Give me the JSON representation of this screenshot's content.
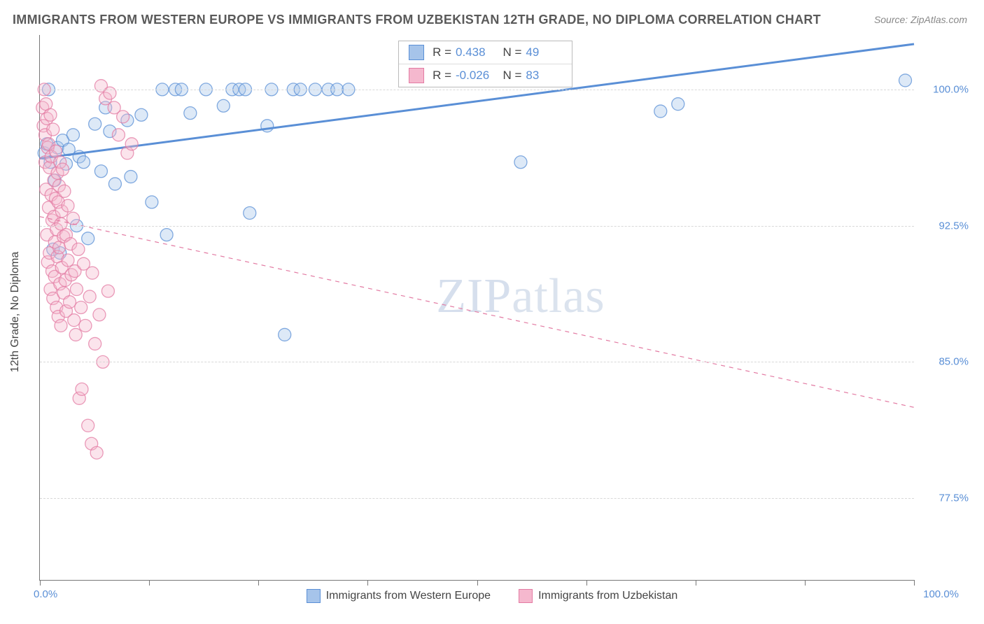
{
  "title": "IMMIGRANTS FROM WESTERN EUROPE VS IMMIGRANTS FROM UZBEKISTAN 12TH GRADE, NO DIPLOMA CORRELATION CHART",
  "source": "Source: ZipAtlas.com",
  "y_axis_title": "12th Grade, No Diploma",
  "x_min_label": "0.0%",
  "x_max_label": "100.0%",
  "watermark_bold": "ZIP",
  "watermark_thin": "atlas",
  "chart": {
    "type": "scatter",
    "background_color": "#ffffff",
    "grid_color": "#d8d8d8",
    "axis_color": "#777777",
    "xlim": [
      0,
      100
    ],
    "ylim": [
      73,
      103
    ],
    "y_ticks": [
      77.5,
      85.0,
      92.5,
      100.0
    ],
    "y_tick_labels": [
      "77.5%",
      "85.0%",
      "92.5%",
      "100.0%"
    ],
    "x_ticks": [
      0,
      12.5,
      25,
      37.5,
      50,
      62.5,
      75,
      87.5,
      100
    ],
    "marker_radius": 9,
    "marker_opacity": 0.38,
    "marker_stroke_opacity": 0.75,
    "line_width_solid": 3,
    "line_width_dashed": 1.2,
    "series": [
      {
        "name": "Immigrants from Western Europe",
        "color": "#5a8fd6",
        "fill": "#a6c4ea",
        "reg_line": {
          "x1": 0,
          "y1": 96.2,
          "x2": 100,
          "y2": 102.5,
          "dashed": false
        },
        "stats": {
          "R": "0.438",
          "N": "49"
        },
        "points": [
          [
            0.5,
            96.5
          ],
          [
            0.8,
            97.0
          ],
          [
            1.0,
            100.0
          ],
          [
            1.2,
            96.0
          ],
          [
            1.5,
            91.2
          ],
          [
            1.7,
            95.0
          ],
          [
            2.0,
            96.8
          ],
          [
            2.3,
            91.0
          ],
          [
            2.6,
            97.2
          ],
          [
            3.0,
            95.9
          ],
          [
            3.3,
            96.7
          ],
          [
            3.8,
            97.5
          ],
          [
            4.2,
            92.5
          ],
          [
            4.5,
            96.3
          ],
          [
            5.0,
            96.0
          ],
          [
            5.5,
            91.8
          ],
          [
            6.3,
            98.1
          ],
          [
            7.0,
            95.5
          ],
          [
            7.5,
            99.0
          ],
          [
            8.0,
            97.7
          ],
          [
            8.6,
            94.8
          ],
          [
            10.0,
            98.3
          ],
          [
            10.4,
            95.2
          ],
          [
            11.6,
            98.6
          ],
          [
            12.8,
            93.8
          ],
          [
            14.0,
            100.0
          ],
          [
            14.5,
            92.0
          ],
          [
            15.5,
            100.0
          ],
          [
            16.2,
            100.0
          ],
          [
            17.2,
            98.7
          ],
          [
            19.0,
            100.0
          ],
          [
            21.0,
            99.1
          ],
          [
            22.0,
            100.0
          ],
          [
            22.8,
            100.0
          ],
          [
            23.5,
            100.0
          ],
          [
            24.0,
            93.2
          ],
          [
            26.0,
            98.0
          ],
          [
            26.5,
            100.0
          ],
          [
            28.0,
            86.5
          ],
          [
            29.0,
            100.0
          ],
          [
            29.8,
            100.0
          ],
          [
            31.5,
            100.0
          ],
          [
            33.0,
            100.0
          ],
          [
            34.0,
            100.0
          ],
          [
            35.3,
            100.0
          ],
          [
            55.0,
            96.0
          ],
          [
            71.0,
            98.8
          ],
          [
            73.0,
            99.2
          ],
          [
            99.0,
            100.5
          ]
        ]
      },
      {
        "name": "Immigrants from Uzbekistan",
        "color": "#e37ba3",
        "fill": "#f5b8ce",
        "reg_line": {
          "x1": 0,
          "y1": 93.0,
          "x2": 100,
          "y2": 82.5,
          "dashed": true
        },
        "stats": {
          "R": "-0.026",
          "N": "83"
        },
        "points": [
          [
            0.3,
            99.0
          ],
          [
            0.4,
            98.0
          ],
          [
            0.5,
            100.0
          ],
          [
            0.6,
            97.5
          ],
          [
            0.6,
            96.0
          ],
          [
            0.7,
            99.2
          ],
          [
            0.7,
            94.5
          ],
          [
            0.8,
            98.4
          ],
          [
            0.8,
            92.0
          ],
          [
            0.9,
            96.8
          ],
          [
            0.9,
            90.5
          ],
          [
            1.0,
            97.0
          ],
          [
            1.0,
            93.5
          ],
          [
            1.1,
            91.0
          ],
          [
            1.1,
            95.7
          ],
          [
            1.2,
            98.6
          ],
          [
            1.2,
            89.0
          ],
          [
            1.3,
            94.2
          ],
          [
            1.3,
            96.3
          ],
          [
            1.4,
            92.8
          ],
          [
            1.4,
            90.0
          ],
          [
            1.5,
            97.8
          ],
          [
            1.5,
            88.5
          ],
          [
            1.6,
            93.0
          ],
          [
            1.6,
            95.0
          ],
          [
            1.7,
            91.6
          ],
          [
            1.7,
            89.7
          ],
          [
            1.8,
            94.0
          ],
          [
            1.8,
            96.6
          ],
          [
            1.9,
            88.0
          ],
          [
            1.9,
            92.3
          ],
          [
            2.0,
            95.4
          ],
          [
            2.0,
            90.8
          ],
          [
            2.1,
            93.8
          ],
          [
            2.1,
            87.5
          ],
          [
            2.2,
            91.3
          ],
          [
            2.2,
            94.7
          ],
          [
            2.3,
            89.3
          ],
          [
            2.3,
            96.0
          ],
          [
            2.4,
            92.6
          ],
          [
            2.4,
            87.0
          ],
          [
            2.5,
            90.2
          ],
          [
            2.5,
            93.3
          ],
          [
            2.6,
            95.6
          ],
          [
            2.7,
            88.8
          ],
          [
            2.7,
            91.9
          ],
          [
            2.8,
            94.4
          ],
          [
            2.9,
            89.5
          ],
          [
            3.0,
            92.0
          ],
          [
            3.0,
            87.8
          ],
          [
            3.2,
            90.6
          ],
          [
            3.2,
            93.6
          ],
          [
            3.4,
            88.3
          ],
          [
            3.5,
            91.5
          ],
          [
            3.6,
            89.8
          ],
          [
            3.8,
            92.9
          ],
          [
            3.9,
            87.3
          ],
          [
            4.0,
            90.0
          ],
          [
            4.1,
            86.5
          ],
          [
            4.2,
            89.0
          ],
          [
            4.4,
            91.2
          ],
          [
            4.5,
            83.0
          ],
          [
            4.7,
            88.0
          ],
          [
            4.8,
            83.5
          ],
          [
            5.0,
            90.4
          ],
          [
            5.2,
            87.0
          ],
          [
            5.5,
            81.5
          ],
          [
            5.7,
            88.6
          ],
          [
            5.9,
            80.5
          ],
          [
            6.0,
            89.9
          ],
          [
            6.3,
            86.0
          ],
          [
            6.5,
            80.0
          ],
          [
            6.8,
            87.6
          ],
          [
            7.0,
            100.2
          ],
          [
            7.2,
            85.0
          ],
          [
            7.5,
            99.5
          ],
          [
            7.8,
            88.9
          ],
          [
            8.0,
            99.8
          ],
          [
            8.5,
            99.0
          ],
          [
            9.0,
            97.5
          ],
          [
            9.5,
            98.5
          ],
          [
            10.0,
            96.5
          ],
          [
            10.5,
            97.0
          ]
        ]
      }
    ]
  },
  "legend_items": [
    {
      "label": "Immigrants from Western Europe",
      "fill": "#a6c4ea",
      "border": "#5a8fd6"
    },
    {
      "label": "Immigrants from Uzbekistan",
      "fill": "#f5b8ce",
      "border": "#e37ba3"
    }
  ]
}
